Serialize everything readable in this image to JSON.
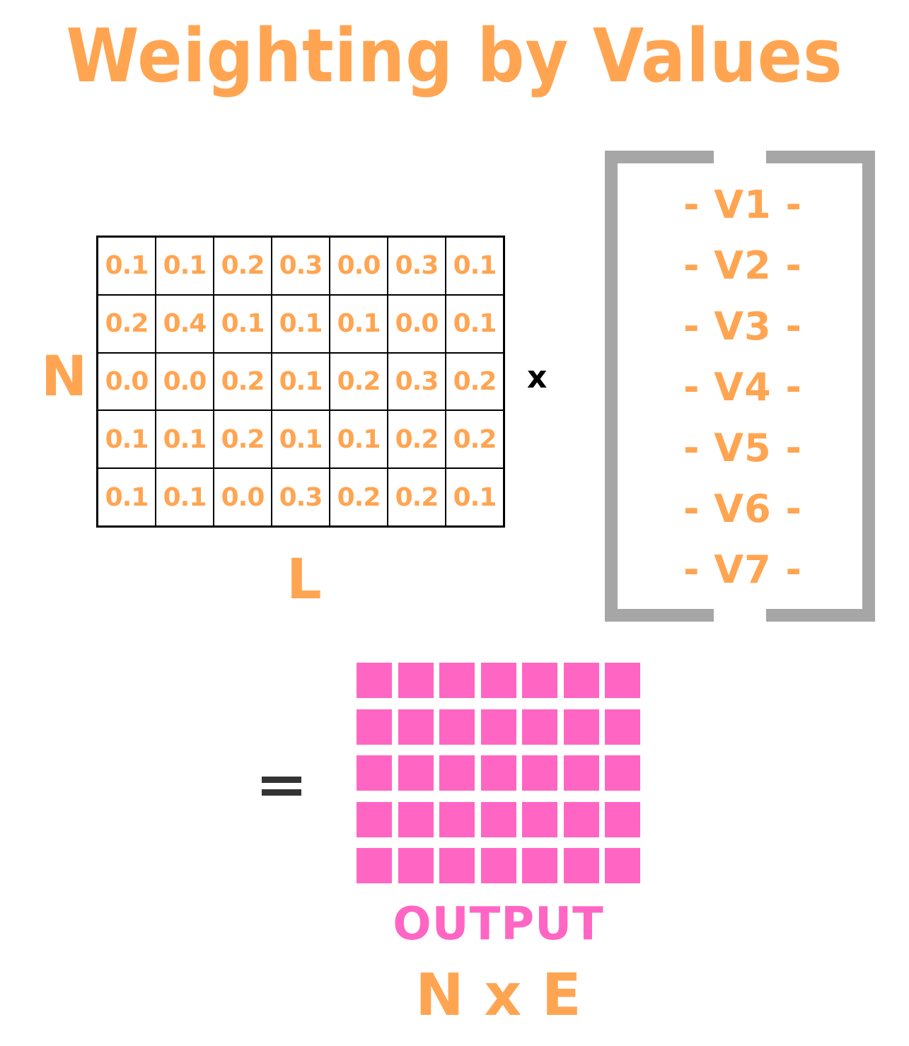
{
  "title": "Weighting by Values",
  "matrix": {
    "rows": [
      [
        "0.1",
        "0.1",
        "0.2",
        "0.3",
        "0.0",
        "0.3",
        "0.1"
      ],
      [
        "0.2",
        "0.4",
        "0.1",
        "0.1",
        "0.1",
        "0.0",
        "0.1"
      ],
      [
        "0.0",
        "0.0",
        "0.2",
        "0.1",
        "0.2",
        "0.3",
        "0.2"
      ],
      [
        "0.1",
        "0.1",
        "0.2",
        "0.1",
        "0.1",
        "0.2",
        "0.2"
      ],
      [
        "0.1",
        "0.1",
        "0.0",
        "0.3",
        "0.2",
        "0.2",
        "0.1"
      ]
    ],
    "row_label": "N",
    "col_label": "L"
  },
  "operator": "x",
  "values": [
    "- V1 -",
    "- V2 -",
    "- V3 -",
    "- V4 -",
    "- V5 -",
    "- V6 -",
    "- V7 -"
  ],
  "output": {
    "rows": 5,
    "cols": 7,
    "label": "OUTPUT",
    "dims": "N x E"
  },
  "colors": {
    "orange": "#ffa552",
    "pink": "#ff66c4",
    "bracket": "#a6a6a6"
  }
}
